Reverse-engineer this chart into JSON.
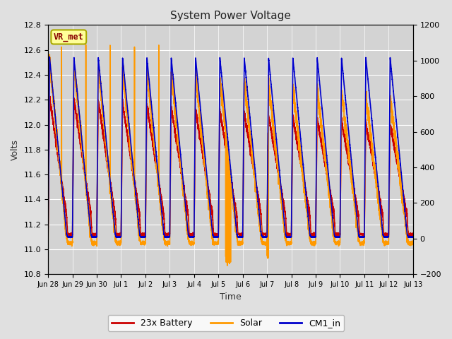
{
  "title": "System Power Voltage",
  "xlabel": "Time",
  "ylabel": "Volts",
  "ylim_left": [
    10.8,
    12.8
  ],
  "ylim_right": [
    -200,
    1200
  ],
  "yticks_left": [
    10.8,
    11.0,
    11.2,
    11.4,
    11.6,
    11.8,
    12.0,
    12.2,
    12.4,
    12.6,
    12.8
  ],
  "yticks_right": [
    -200,
    0,
    200,
    400,
    600,
    800,
    1000,
    1200
  ],
  "xtick_labels": [
    "Jun 28",
    "Jun 29",
    "Jun 30",
    "Jul 1",
    "Jul 2",
    "Jul 3",
    "Jul 4",
    "Jul 5",
    "Jul 6",
    "Jul 7",
    "Jul 8",
    "Jul 9",
    "Jul 10",
    "Jul 11",
    "Jul 12",
    "Jul 13"
  ],
  "bg_color": "#e0e0e0",
  "plot_bg_color": "#d3d3d3",
  "grid_color": "#ffffff",
  "line_colors": {
    "battery": "#cc0000",
    "solar": "#ff9900",
    "cm1_in": "#0000cc"
  },
  "line_widths": {
    "battery": 1.2,
    "solar": 1.2,
    "cm1_in": 1.2
  },
  "legend_labels": [
    "23x Battery",
    "Solar",
    "CM1_in"
  ],
  "annotation_text": "VR_met",
  "annotation_color": "#880000",
  "annotation_bg": "#ffff99",
  "annotation_border": "#aaaa00"
}
